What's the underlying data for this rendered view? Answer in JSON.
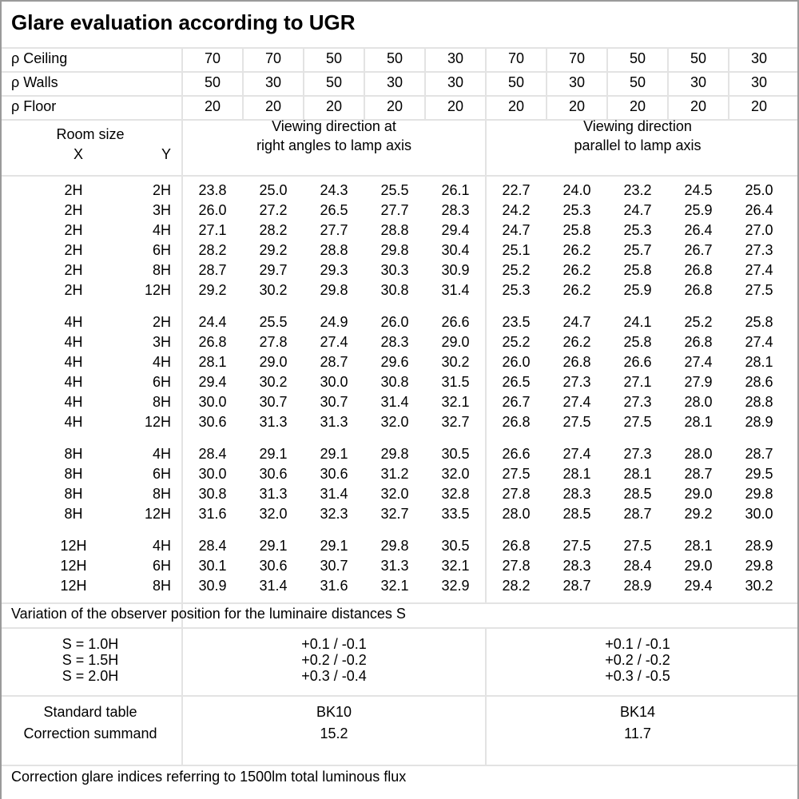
{
  "title": "Glare evaluation according to UGR",
  "reflectances": [
    {
      "label": "ρ Ceiling",
      "values": [
        "70",
        "70",
        "50",
        "50",
        "30",
        "70",
        "70",
        "50",
        "50",
        "30"
      ]
    },
    {
      "label": "ρ Walls",
      "values": [
        "50",
        "30",
        "50",
        "30",
        "30",
        "50",
        "30",
        "50",
        "30",
        "30"
      ]
    },
    {
      "label": "ρ Floor",
      "values": [
        "20",
        "20",
        "20",
        "20",
        "20",
        "20",
        "20",
        "20",
        "20",
        "20"
      ]
    }
  ],
  "header": {
    "room_size": "Room size",
    "x": "X",
    "y": "Y",
    "dir_right_1": "Viewing direction at",
    "dir_right_2": "right angles to lamp axis",
    "dir_parallel_1": "Viewing direction",
    "dir_parallel_2": "parallel to lamp axis"
  },
  "groups": [
    {
      "rows": [
        {
          "x": "2H",
          "y": "2H",
          "v": [
            "23.8",
            "25.0",
            "24.3",
            "25.5",
            "26.1",
            "22.7",
            "24.0",
            "23.2",
            "24.5",
            "25.0"
          ]
        },
        {
          "x": "2H",
          "y": "3H",
          "v": [
            "26.0",
            "27.2",
            "26.5",
            "27.7",
            "28.3",
            "24.2",
            "25.3",
            "24.7",
            "25.9",
            "26.4"
          ]
        },
        {
          "x": "2H",
          "y": "4H",
          "v": [
            "27.1",
            "28.2",
            "27.7",
            "28.8",
            "29.4",
            "24.7",
            "25.8",
            "25.3",
            "26.4",
            "27.0"
          ]
        },
        {
          "x": "2H",
          "y": "6H",
          "v": [
            "28.2",
            "29.2",
            "28.8",
            "29.8",
            "30.4",
            "25.1",
            "26.2",
            "25.7",
            "26.7",
            "27.3"
          ]
        },
        {
          "x": "2H",
          "y": "8H",
          "v": [
            "28.7",
            "29.7",
            "29.3",
            "30.3",
            "30.9",
            "25.2",
            "26.2",
            "25.8",
            "26.8",
            "27.4"
          ]
        },
        {
          "x": "2H",
          "y": "12H",
          "v": [
            "29.2",
            "30.2",
            "29.8",
            "30.8",
            "31.4",
            "25.3",
            "26.2",
            "25.9",
            "26.8",
            "27.5"
          ]
        }
      ]
    },
    {
      "rows": [
        {
          "x": "4H",
          "y": "2H",
          "v": [
            "24.4",
            "25.5",
            "24.9",
            "26.0",
            "26.6",
            "23.5",
            "24.7",
            "24.1",
            "25.2",
            "25.8"
          ]
        },
        {
          "x": "4H",
          "y": "3H",
          "v": [
            "26.8",
            "27.8",
            "27.4",
            "28.3",
            "29.0",
            "25.2",
            "26.2",
            "25.8",
            "26.8",
            "27.4"
          ]
        },
        {
          "x": "4H",
          "y": "4H",
          "v": [
            "28.1",
            "29.0",
            "28.7",
            "29.6",
            "30.2",
            "26.0",
            "26.8",
            "26.6",
            "27.4",
            "28.1"
          ]
        },
        {
          "x": "4H",
          "y": "6H",
          "v": [
            "29.4",
            "30.2",
            "30.0",
            "30.8",
            "31.5",
            "26.5",
            "27.3",
            "27.1",
            "27.9",
            "28.6"
          ]
        },
        {
          "x": "4H",
          "y": "8H",
          "v": [
            "30.0",
            "30.7",
            "30.7",
            "31.4",
            "32.1",
            "26.7",
            "27.4",
            "27.3",
            "28.0",
            "28.8"
          ]
        },
        {
          "x": "4H",
          "y": "12H",
          "v": [
            "30.6",
            "31.3",
            "31.3",
            "32.0",
            "32.7",
            "26.8",
            "27.5",
            "27.5",
            "28.1",
            "28.9"
          ]
        }
      ]
    },
    {
      "rows": [
        {
          "x": "8H",
          "y": "4H",
          "v": [
            "28.4",
            "29.1",
            "29.1",
            "29.8",
            "30.5",
            "26.6",
            "27.4",
            "27.3",
            "28.0",
            "28.7"
          ]
        },
        {
          "x": "8H",
          "y": "6H",
          "v": [
            "30.0",
            "30.6",
            "30.6",
            "31.2",
            "32.0",
            "27.5",
            "28.1",
            "28.1",
            "28.7",
            "29.5"
          ]
        },
        {
          "x": "8H",
          "y": "8H",
          "v": [
            "30.8",
            "31.3",
            "31.4",
            "32.0",
            "32.8",
            "27.8",
            "28.3",
            "28.5",
            "29.0",
            "29.8"
          ]
        },
        {
          "x": "8H",
          "y": "12H",
          "v": [
            "31.6",
            "32.0",
            "32.3",
            "32.7",
            "33.5",
            "28.0",
            "28.5",
            "28.7",
            "29.2",
            "30.0"
          ]
        }
      ]
    },
    {
      "rows": [
        {
          "x": "12H",
          "y": "4H",
          "v": [
            "28.4",
            "29.1",
            "29.1",
            "29.8",
            "30.5",
            "26.8",
            "27.5",
            "27.5",
            "28.1",
            "28.9"
          ]
        },
        {
          "x": "12H",
          "y": "6H",
          "v": [
            "30.1",
            "30.6",
            "30.7",
            "31.3",
            "32.1",
            "27.8",
            "28.3",
            "28.4",
            "29.0",
            "29.8"
          ]
        },
        {
          "x": "12H",
          "y": "8H",
          "v": [
            "30.9",
            "31.4",
            "31.6",
            "32.1",
            "32.9",
            "28.2",
            "28.7",
            "28.9",
            "29.4",
            "30.2"
          ]
        }
      ]
    }
  ],
  "variation": {
    "label": "Variation of the observer position for the luminaire distances S",
    "rows": [
      {
        "s": "S = 1.0H",
        "right": "+0.1 / -0.1",
        "parallel": "+0.1 / -0.1"
      },
      {
        "s": "S = 1.5H",
        "right": "+0.2 / -0.2",
        "parallel": "+0.2 / -0.2"
      },
      {
        "s": "S = 2.0H",
        "right": "+0.3 / -0.4",
        "parallel": "+0.3 / -0.5"
      }
    ]
  },
  "standard": {
    "label1": "Standard table",
    "label2": "Correction summand",
    "right_table": "BK10",
    "right_summand": "15.2",
    "parallel_table": "BK14",
    "parallel_summand": "11.7"
  },
  "footer": "Correction glare indices referring to 1500lm total luminous flux"
}
